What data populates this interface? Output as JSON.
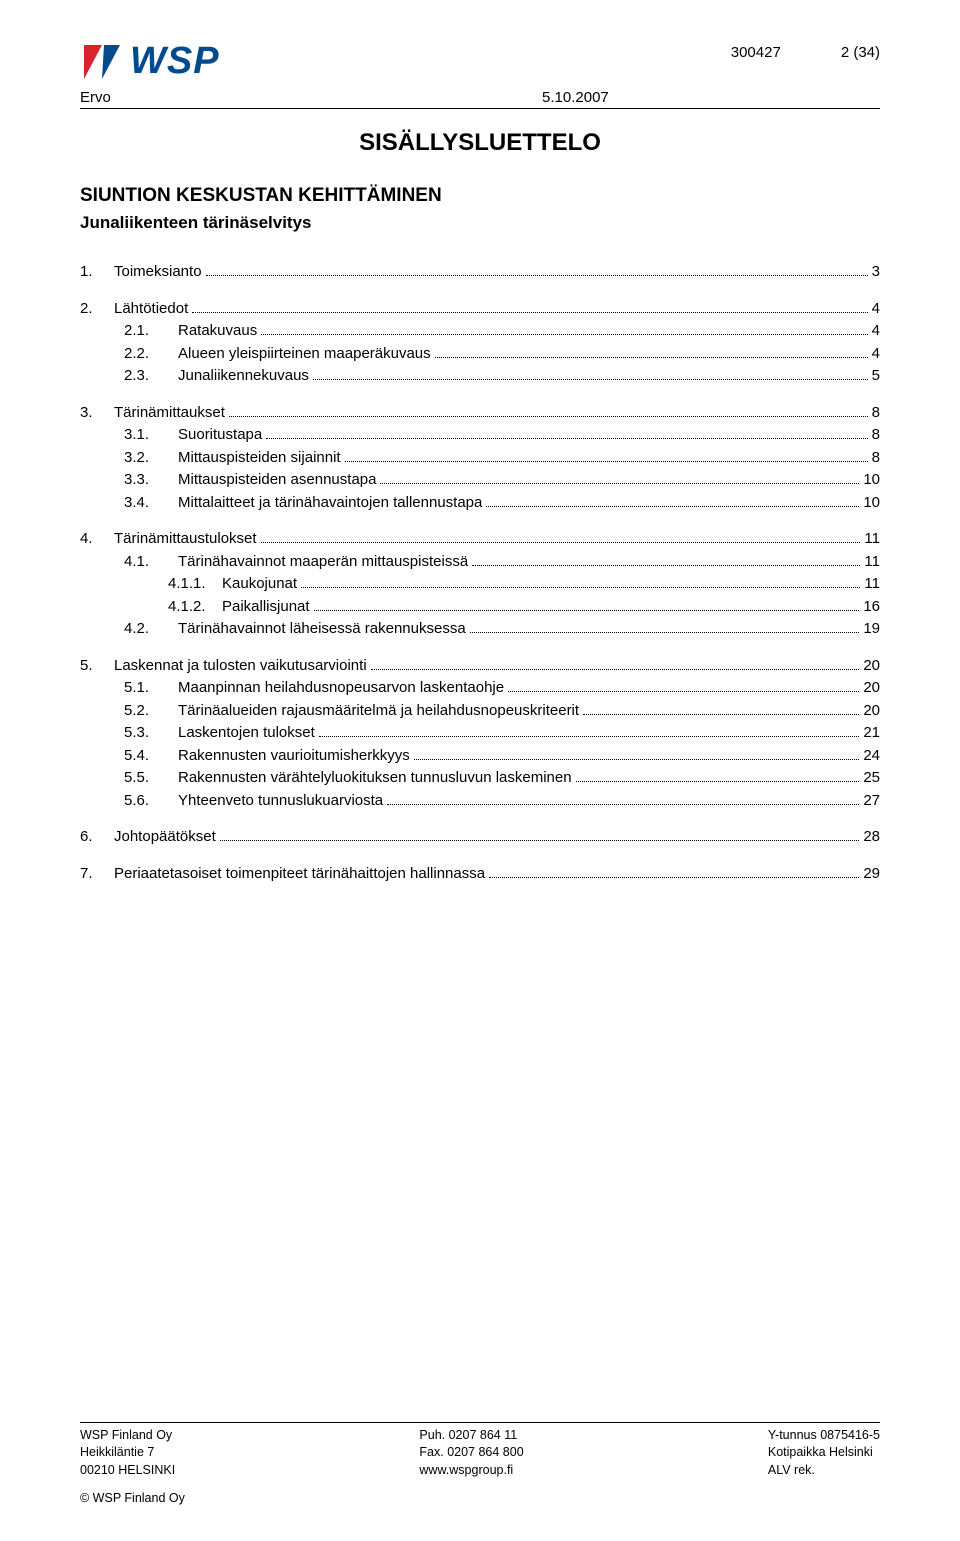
{
  "header": {
    "logo_text": "WSP",
    "doc_number": "300427",
    "page_indicator": "2 (34)",
    "ervo": "Ervo",
    "date": "5.10.2007"
  },
  "title": "SISÄLLYSLUETTELO",
  "sub_title1": "SIUNTION KESKUSTAN KEHITTÄMINEN",
  "sub_title2": "Junaliikenteen tärinäselvitys",
  "toc": [
    {
      "lvl": 1,
      "num": "1.",
      "title": "Toimeksianto",
      "page": "3"
    },
    {
      "lvl": 1,
      "num": "2.",
      "title": "Lähtötiedot",
      "page": "4"
    },
    {
      "lvl": 2,
      "num": "2.1.",
      "title": "Ratakuvaus",
      "page": "4"
    },
    {
      "lvl": 2,
      "num": "2.2.",
      "title": "Alueen yleispiirteinen maaperäkuvaus",
      "page": "4"
    },
    {
      "lvl": 2,
      "num": "2.3.",
      "title": "Junaliikennekuvaus",
      "page": "5"
    },
    {
      "lvl": 1,
      "num": "3.",
      "title": "Tärinämittaukset",
      "page": "8"
    },
    {
      "lvl": 2,
      "num": "3.1.",
      "title": "Suoritustapa",
      "page": "8"
    },
    {
      "lvl": 2,
      "num": "3.2.",
      "title": "Mittauspisteiden sijainnit",
      "page": "8"
    },
    {
      "lvl": 2,
      "num": "3.3.",
      "title": "Mittauspisteiden asennustapa",
      "page": "10"
    },
    {
      "lvl": 2,
      "num": "3.4.",
      "title": "Mittalaitteet ja tärinähavaintojen tallennustapa",
      "page": "10"
    },
    {
      "lvl": 1,
      "num": "4.",
      "title": "Tärinämittaustulokset",
      "page": "11"
    },
    {
      "lvl": 2,
      "num": "4.1.",
      "title": "Tärinähavainnot maaperän mittauspisteissä",
      "page": "11"
    },
    {
      "lvl": 3,
      "num": "4.1.1.",
      "title": "Kaukojunat",
      "page": "11"
    },
    {
      "lvl": 3,
      "num": "4.1.2.",
      "title": "Paikallisjunat",
      "page": "16"
    },
    {
      "lvl": 2,
      "num": "4.2.",
      "title": "Tärinähavainnot läheisessä rakennuksessa",
      "page": "19"
    },
    {
      "lvl": 1,
      "num": "5.",
      "title": "Laskennat ja tulosten vaikutusarviointi",
      "page": "20"
    },
    {
      "lvl": 2,
      "num": "5.1.",
      "title": "Maanpinnan heilahdusnopeusarvon laskentaohje",
      "page": "20"
    },
    {
      "lvl": 2,
      "num": "5.2.",
      "title": "Tärinäalueiden rajausmääritelmä ja heilahdusnopeuskriteerit",
      "page": "20"
    },
    {
      "lvl": 2,
      "num": "5.3.",
      "title": "Laskentojen tulokset",
      "page": "21"
    },
    {
      "lvl": 2,
      "num": "5.4.",
      "title": "Rakennusten vaurioitumisherkkyys",
      "page": "24"
    },
    {
      "lvl": 2,
      "num": "5.5.",
      "title": "Rakennusten värähtelyluokituksen tunnusluvun laskeminen",
      "page": "25"
    },
    {
      "lvl": 2,
      "num": "5.6.",
      "title": "Yhteenveto tunnuslukuarviosta",
      "page": "27"
    },
    {
      "lvl": 1,
      "num": "6.",
      "title": "Johtopäätökset",
      "page": "28"
    },
    {
      "lvl": 1,
      "num": "7.",
      "title": "Periaatetasoiset toimenpiteet tärinähaittojen hallinnassa",
      "page": "29"
    }
  ],
  "footer": {
    "col1": [
      "WSP Finland Oy",
      "Heikkiläntie 7",
      "00210 HELSINKI"
    ],
    "col2": [
      "Puh. 0207 864 11",
      "Fax. 0207 864 800",
      "www.wspgroup.fi"
    ],
    "col3": [
      "Y-tunnus 0875416-5",
      "Kotipaikka Helsinki",
      "ALV rek."
    ],
    "copy": "© WSP Finland Oy"
  },
  "colors": {
    "logo_blue": "#004b8d",
    "logo_red": "#d8232a",
    "text": "#000000",
    "background": "#ffffff"
  }
}
